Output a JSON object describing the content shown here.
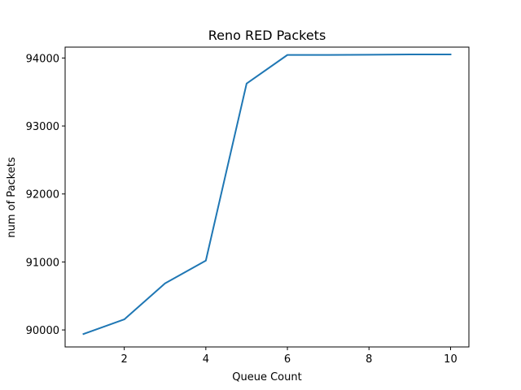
{
  "chart_data": {
    "type": "line",
    "title": "Reno RED Packets",
    "xlabel": "Queue Count",
    "ylabel": "num of Packets",
    "x": [
      1,
      2,
      3,
      4,
      5,
      6,
      7,
      8,
      9,
      10
    ],
    "series": [
      {
        "values": [
          89940,
          90155,
          90685,
          91020,
          93625,
          94045,
          94045,
          94048,
          94052,
          94052
        ]
      }
    ],
    "xlim": [
      0.55,
      10.45
    ],
    "ylim": [
      89750,
      94160
    ],
    "xticks": [
      2,
      4,
      6,
      8,
      10
    ],
    "yticks": [
      90000,
      91000,
      92000,
      93000,
      94000
    ],
    "grid": false,
    "line_color": "#1f77b4"
  }
}
